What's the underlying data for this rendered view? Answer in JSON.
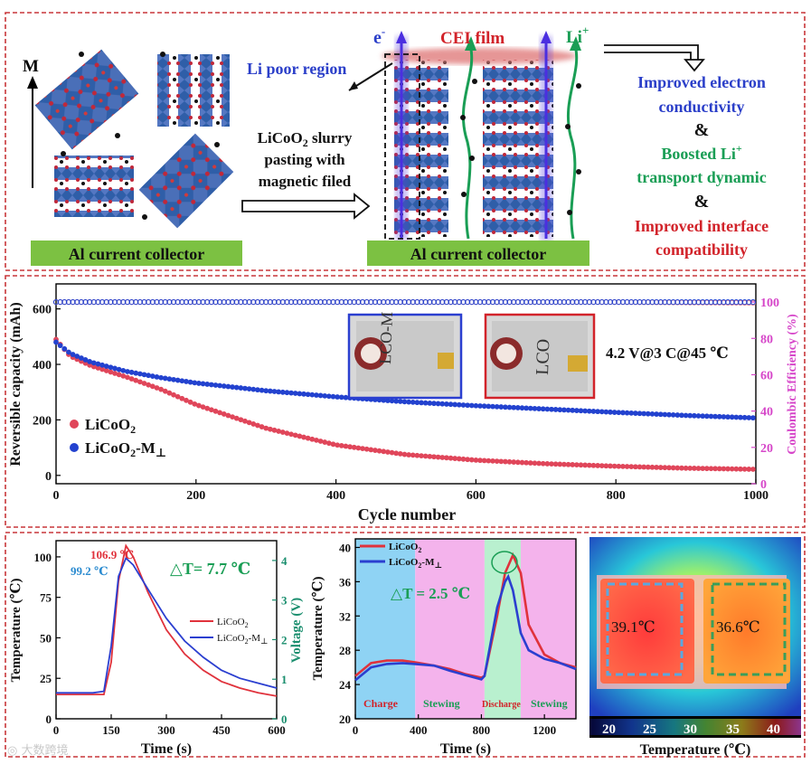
{
  "schematic": {
    "axis_label": "M",
    "substrate_left": "Al current collector",
    "substrate_right": "Al current collector",
    "process_line1": "LiCoO",
    "process_sub": "2",
    "process_line1_tail": " slurry",
    "process_line2": "pasting with",
    "process_line3": "magnetic filed",
    "electron_label": "e",
    "electron_sup": "-",
    "cei_label": "CEI film",
    "li_label": "Li",
    "li_sup": "+",
    "li_poor_label": "Li poor region",
    "benefit1_line1": "Improved electron",
    "benefit1_line2": "conductivity",
    "amp1": "&",
    "benefit2_line1": "Boosted Li",
    "benefit2_sup": "+",
    "benefit2_line2": "transport dynamic",
    "amp2": "&",
    "benefit3_line1": "Improved interface",
    "benefit3_line2": "compatibility",
    "colors": {
      "blue": "#2b3fc9",
      "green": "#1a9e55",
      "red": "#d2232a",
      "substrate": "#7cc142"
    }
  },
  "chart_data": [
    {
      "type": "scatter",
      "xlabel": "Cycle number",
      "ylabel": "Reversible capacity (mAh)",
      "y2label": "Coulombic Efficiency (%)",
      "annotation": "4.2 V@3 C@45 ℃",
      "xlim": [
        0,
        1000
      ],
      "ylim": [
        -30,
        690
      ],
      "y2lim": [
        0,
        110
      ],
      "xticks": [
        "0",
        "200",
        "400",
        "600",
        "800",
        "1000"
      ],
      "yticks": [
        "0",
        "200",
        "400",
        "600"
      ],
      "y2ticks": [
        "0",
        "20",
        "40",
        "60",
        "80",
        "100"
      ],
      "legend_position": "bottom-left",
      "photo_labels": [
        "LCO-M",
        "LCO"
      ],
      "series": [
        {
          "name": "LiCoO",
          "name_sub": "2",
          "color": "#e0465a",
          "x": [
            0,
            20,
            50,
            100,
            150,
            200,
            300,
            400,
            500,
            600,
            700,
            800,
            900,
            1000
          ],
          "y": [
            490,
            430,
            395,
            355,
            310,
            255,
            170,
            110,
            75,
            55,
            42,
            33,
            26,
            22
          ]
        },
        {
          "name": "LiCoO",
          "name_sub": "2",
          "name_tail": "-M",
          "name_perp": "⊥",
          "color": "#2342cf",
          "x": [
            0,
            20,
            50,
            100,
            150,
            200,
            300,
            400,
            500,
            600,
            700,
            800,
            900,
            1000
          ],
          "y": [
            480,
            440,
            408,
            375,
            352,
            333,
            305,
            283,
            265,
            251,
            239,
            227,
            216,
            207
          ]
        },
        {
          "name": "CE LiCoO2",
          "axis": "y2",
          "color": "#e38a9a",
          "x": [
            0,
            100,
            200,
            400,
            600,
            800,
            1000
          ],
          "y": [
            100,
            100,
            100,
            100,
            100,
            100,
            99.5
          ]
        },
        {
          "name": "CE LiCoO2-M",
          "axis": "y2",
          "color": "#2342cf",
          "x": [
            0,
            100,
            200,
            400,
            600,
            800,
            1000
          ],
          "y": [
            100,
            100,
            100,
            100,
            100,
            100,
            100
          ]
        }
      ]
    },
    {
      "type": "line",
      "xlabel": "Time (s)",
      "ylabel": "Temperature (℃)",
      "y2label": "Voltage (V)",
      "xlim": [
        0,
        600
      ],
      "ylim": [
        0,
        110
      ],
      "y2lim": [
        0,
        4.5
      ],
      "xticks": [
        "0",
        "150",
        "300",
        "450",
        "600"
      ],
      "yticks": [
        "0",
        "25",
        "50",
        "75",
        "100"
      ],
      "y2ticks": [
        "0",
        "1",
        "2",
        "3",
        "4"
      ],
      "peak1_label": "106.9 ℃",
      "peak2_label": "99.2 ℃",
      "delta_label": "△T= 7.7 ℃",
      "legend_position": "center-right",
      "series": [
        {
          "name": "LiCoO",
          "name_sub": "2",
          "color": "#e0323c",
          "x": [
            0,
            100,
            130,
            150,
            170,
            190,
            210,
            250,
            300,
            350,
            400,
            450,
            500,
            550,
            600
          ],
          "y": [
            15,
            15,
            15,
            35,
            85,
            106.9,
            100,
            78,
            55,
            40,
            30,
            23,
            19,
            16,
            14
          ]
        },
        {
          "name": "LiCoO",
          "name_sub": "2",
          "name_tail": "-M",
          "name_perp": "⊥",
          "color": "#2b3fd0",
          "x": [
            0,
            100,
            130,
            150,
            170,
            190,
            210,
            250,
            300,
            350,
            400,
            450,
            500,
            550,
            600
          ],
          "y": [
            16,
            16,
            17,
            45,
            88,
            99.2,
            95,
            80,
            62,
            48,
            38,
            30,
            25,
            22,
            19
          ]
        }
      ]
    },
    {
      "type": "line",
      "xlabel": "Time (s)",
      "ylabel": "Temperature (℃)",
      "xlim": [
        0,
        1400
      ],
      "ylim": [
        20,
        41
      ],
      "xticks": [
        "0",
        "400",
        "800",
        "1200"
      ],
      "yticks": [
        "20",
        "24",
        "28",
        "32",
        "36",
        "40"
      ],
      "delta_label": "△T = 2.5 ℃",
      "phase_labels": [
        "Charge",
        "Stewing",
        "Discharge",
        "Stewing"
      ],
      "phase_colors": [
        "#8fd3f4",
        "#f4b3ec",
        "#b9f0cf",
        "#f4b3ec"
      ],
      "phase_bounds": [
        0,
        380,
        820,
        1050,
        1400
      ],
      "legend_position": "top-left",
      "series": [
        {
          "name": "LiCoO",
          "name_sub": "2",
          "color": "#e0323c",
          "x": [
            0,
            100,
            200,
            300,
            380,
            500,
            600,
            700,
            800,
            820,
            900,
            950,
            1000,
            1050,
            1100,
            1200,
            1300,
            1400
          ],
          "y": [
            25,
            26.5,
            26.8,
            26.8,
            26.6,
            26.2,
            25.8,
            25.2,
            24.8,
            25,
            32,
            37,
            39.1,
            37,
            31,
            27.5,
            26.5,
            26
          ]
        },
        {
          "name": "LiCoO",
          "name_sub": "2",
          "name_tail": "-M",
          "name_perp": "⊥",
          "color": "#2b3fd0",
          "x": [
            0,
            100,
            200,
            300,
            380,
            500,
            600,
            700,
            800,
            820,
            900,
            950,
            970,
            1000,
            1050,
            1100,
            1200,
            1300,
            1400
          ],
          "y": [
            24.5,
            26,
            26.4,
            26.5,
            26.4,
            26.2,
            25.6,
            25.1,
            24.6,
            25,
            33,
            36,
            36.6,
            35,
            30,
            28,
            27,
            26.5,
            25.8
          ]
        }
      ]
    },
    {
      "type": "heatmap",
      "xlabel": "Temperature (℃)",
      "colorbar_ticks": [
        "20",
        "25",
        "30",
        "35",
        "40"
      ],
      "spot_labels": [
        "39.1℃",
        "36.6℃"
      ]
    }
  ],
  "watermark": "大数跨境"
}
